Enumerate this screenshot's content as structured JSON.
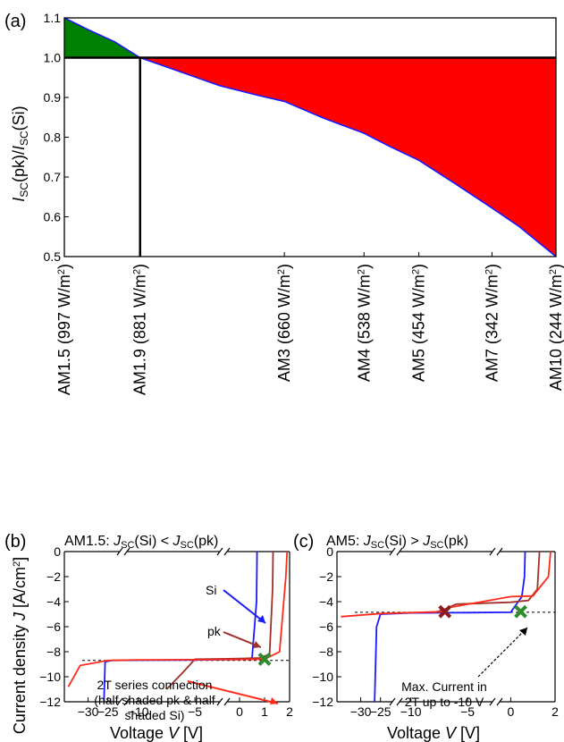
{
  "colors": {
    "red_fill": "#ff0000",
    "green_fill": "#008000",
    "line_blue": "#1a1aff",
    "si_blue": "#1a1aff",
    "pk_darkred": "#a0302a",
    "series_red": "#ff2a1a",
    "marker_green": "#2e8b2e",
    "marker_darkred": "#8b1c1c"
  },
  "chart_data": [
    {
      "panel": "(a)",
      "type": "area",
      "ylabel_main": "I",
      "ylabel_sub1": "SC",
      "ylabel_mid": "(pk)/",
      "ylabel_main2": "I",
      "ylabel_sub2": "SC",
      "ylabel_end": "(Si)",
      "ylim": [
        0.5,
        1.1
      ],
      "yticks": [
        "0.5",
        "0.6",
        "0.7",
        "0.8",
        "0.9",
        "1.0",
        "1.1"
      ],
      "xlim": [
        997,
        244
      ],
      "reference_line": 1.0,
      "crossover_x": 881,
      "categories": [
        {
          "label": "AM1.5 (997 W/m",
          "sup": "2",
          "close": ")",
          "x": 997
        },
        {
          "label": "AM1.9 (881 W/m",
          "sup": "2",
          "close": ")",
          "x": 881
        },
        {
          "label": "AM3 (660 W/m",
          "sup": "2",
          "close": ")",
          "x": 660
        },
        {
          "label": "AM4 (538 W/m",
          "sup": "2",
          "close": ")",
          "x": 538
        },
        {
          "label": "AM5 (454 W/m",
          "sup": "2",
          "close": ")",
          "x": 454
        },
        {
          "label": "AM7 (342 W/m",
          "sup": "2",
          "close": ")",
          "x": 342
        },
        {
          "label": "AM10 (244 W/m",
          "sup": "2",
          "close": ")",
          "x": 244
        }
      ],
      "series": [
        {
          "x": [
            997,
            960,
            920,
            881,
            820,
            760,
            700,
            660,
            600,
            538,
            500,
            454,
            400,
            342,
            300,
            244
          ],
          "y": [
            1.1,
            1.07,
            1.04,
            1.0,
            0.965,
            0.93,
            0.905,
            0.89,
            0.848,
            0.81,
            0.778,
            0.742,
            0.685,
            0.622,
            0.575,
            0.5
          ]
        }
      ]
    },
    {
      "panel": "(b)",
      "type": "line",
      "title_prefix": "AM1.5: ",
      "title_j1": "J",
      "title_sub1": "SC",
      "title_mid1": "(Si) < ",
      "title_j2": "J",
      "title_sub2": "SC",
      "title_end": "(pk)",
      "xlabel_prefix": "Voltage ",
      "xlabel_var": "V",
      "xlabel_unit": " [V]",
      "ylabel_prefix": "Current density ",
      "ylabel_var": "J",
      "ylabel_unit_a": " [A/cm",
      "ylabel_unit_sup": "2",
      "ylabel_unit_b": "]",
      "ylim": [
        -12,
        0
      ],
      "yticks": [
        "0",
        "−2",
        "−4",
        "−6",
        "−8",
        "−10",
        "−12"
      ],
      "xticks": [
        "−30",
        "−25",
        "−10",
        "−5",
        "0",
        "1",
        "2"
      ],
      "annotations": {
        "si": "Si",
        "pk": "pk",
        "series_line1": "2T series connection",
        "series_line2": "(half shaded pk & half",
        "series_line3": "shaded Si)"
      },
      "marker": {
        "V": 1.0,
        "J": -8.6
      },
      "max_current_level": -8.7,
      "series": [
        {
          "name": "Si",
          "V": [
            -26,
            -25.7,
            -24,
            -10,
            -5,
            0,
            0.5,
            0.68,
            0.7
          ],
          "J": [
            -12,
            -8.8,
            -8.7,
            -8.68,
            -8.66,
            -8.62,
            -8.5,
            -4,
            0
          ]
        },
        {
          "name": "pk",
          "V": [
            -7.5,
            -6,
            -5,
            0,
            0.8,
            1.2,
            1.32,
            1.34
          ],
          "J": [
            -11,
            -9.6,
            -8.6,
            -8.55,
            -8.5,
            -8.2,
            -3,
            0
          ]
        },
        {
          "name": "2T series connection",
          "V": [
            -35,
            -32,
            -25,
            -10,
            0,
            1.0,
            1.6,
            1.85,
            1.9
          ],
          "J": [
            -10.8,
            -9.1,
            -8.7,
            -8.65,
            -8.62,
            -8.6,
            -8.0,
            -2,
            0
          ]
        }
      ]
    },
    {
      "panel": "(c)",
      "type": "line",
      "title_prefix": "AM5: ",
      "title_j1": "J",
      "title_sub1": "SC",
      "title_mid1": "(Si) > ",
      "title_j2": "J",
      "title_sub2": "SC",
      "title_end": "(pk)",
      "xlabel_prefix": "Voltage ",
      "xlabel_var": "V",
      "xlabel_unit": " [V]",
      "ylim": [
        -12,
        0
      ],
      "yticks": [
        "0",
        "−2",
        "−4",
        "−6",
        "−8",
        "−10",
        "−12"
      ],
      "xticks": [
        "−30",
        "−25",
        "−10",
        "−5",
        "0",
        "2"
      ],
      "annotations": {
        "max_line1": "Max. Current in",
        "max_line2": "2T up to -10 V"
      },
      "markers": [
        {
          "V": -7.0,
          "J": -4.8,
          "color": "marker_darkred"
        },
        {
          "V": 0.45,
          "J": -4.8,
          "color": "marker_green"
        }
      ],
      "max_current_level": -4.85,
      "series": [
        {
          "name": "Si",
          "V": [
            -26.5,
            -26,
            -25,
            -10,
            -5,
            0,
            0.5,
            0.62,
            0.65
          ],
          "J": [
            -12,
            -6,
            -5.0,
            -4.9,
            -4.88,
            -4.85,
            -3.6,
            -2,
            0
          ]
        },
        {
          "name": "pk",
          "V": [
            -8,
            -7,
            -6,
            0,
            0.8,
            1.2,
            1.3
          ],
          "J": [
            -4.9,
            -4.6,
            -4.2,
            -4.05,
            -3.9,
            -3,
            0
          ]
        },
        {
          "name": "2T series connection",
          "V": [
            -35,
            -25,
            -10,
            -7.2,
            -6.5,
            0,
            1.0,
            1.7,
            1.8
          ],
          "J": [
            -5.2,
            -4.95,
            -4.88,
            -4.8,
            -4.45,
            -3.6,
            -3.55,
            -2,
            0
          ]
        }
      ]
    }
  ]
}
